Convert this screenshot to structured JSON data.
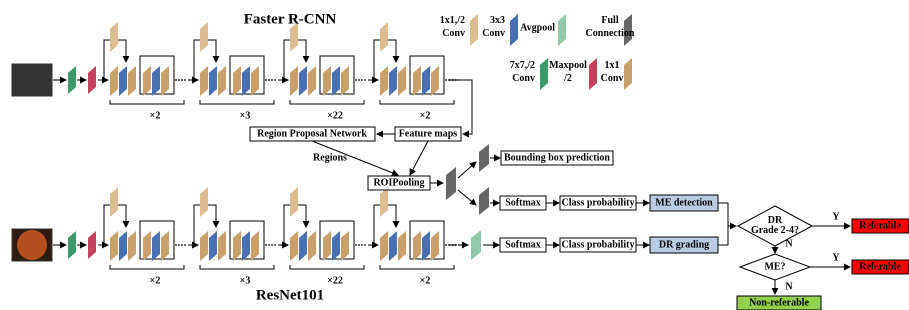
{
  "titles": {
    "top": "Faster R-CNN",
    "bottom": "ResNet101"
  },
  "legend": [
    {
      "lines": [
        "1x1,/2",
        "Conv"
      ]
    },
    {
      "lines": [
        "3x3",
        "Conv"
      ]
    },
    {
      "lines": [
        "Avgpool"
      ]
    },
    {
      "lines": [
        "Full",
        "Connection"
      ]
    },
    {
      "lines": [
        "7x7,/2",
        "Conv"
      ]
    },
    {
      "lines": [
        "Maxpool",
        "/2"
      ]
    },
    {
      "lines": [
        "1x1",
        "Conv"
      ]
    }
  ],
  "top_repeats": [
    "×2",
    "×3",
    "×22",
    "×2"
  ],
  "bottom_repeats": [
    "×2",
    "×3",
    "×22",
    "×2"
  ],
  "nodes": {
    "rpn": "Region Proposal Network",
    "feature_maps": "Feature maps",
    "regions": "Regions",
    "roi_pooling": "ROIPooling",
    "bbox": "Bounding box prediction",
    "softmax_1": "Softmax",
    "class_prob_1": "Class probability",
    "me_detection": "ME detection",
    "softmax_2": "Softmax",
    "class_prob_2": "Class probability",
    "dr_grading": "DR grading",
    "dr_question": [
      "DR",
      "Grade 2-4?"
    ],
    "me_question": "ME?",
    "yes_1": "Y",
    "no_1": "N",
    "yes_2": "Y",
    "no_2": "N",
    "referable_1": "Referable",
    "referable_2": "Referable",
    "non_referable": "Non-referable"
  }
}
